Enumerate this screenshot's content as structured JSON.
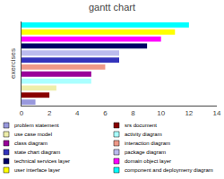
{
  "chart_data": {
    "type": "bar",
    "orientation": "horizontal",
    "title": "gantt chart",
    "ylabel": "exercises",
    "categories": [
      "problem statement",
      "srs document",
      "use case model",
      "activity diagram",
      "class diagram",
      "interaction diagram",
      "state chart diagram",
      "package diagram",
      "technical services layer",
      "domain object layer",
      "user interface layer",
      "component and deploymeny diagram"
    ],
    "values": [
      1.0,
      2.0,
      2.5,
      5.0,
      5.0,
      6.0,
      7.0,
      7.0,
      9.0,
      10.0,
      11.0,
      12.0
    ],
    "colors": [
      "#9999dd",
      "#880000",
      "#eeeeaa",
      "#aaffff",
      "#990099",
      "#ee9988",
      "#3333bb",
      "#bbbbee",
      "#000066",
      "#ff00ff",
      "#ffff00",
      "#00ffff"
    ],
    "xlim": [
      0,
      14
    ],
    "xticks": [
      0,
      2,
      4,
      6,
      8,
      10,
      12,
      14
    ],
    "tick_labels": "x",
    "legend": "bottom",
    "grid": false
  }
}
